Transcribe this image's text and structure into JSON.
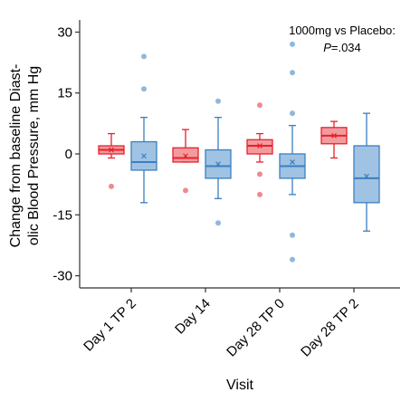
{
  "chart_data": {
    "type": "box",
    "ylabel_lines": [
      "Change from baseline Diast-",
      "olic Blood Pressure, mm Hg"
    ],
    "xlabel": "Visit",
    "ylim": [
      -33,
      33
    ],
    "yticks": [
      -30,
      -15,
      0,
      15,
      30
    ],
    "categories": [
      "Day 1 TP 2",
      "Day 14",
      "Day 28 TP 0",
      "Day 28 TP 2"
    ],
    "annotation_line1": "1000mg vs Placebo:",
    "annotation_p_italic": "P",
    "annotation_p_value": "=.034",
    "legend": "none",
    "grid": false,
    "series": [
      {
        "color_fill": "#f08a8e",
        "color_line": "#e8202a",
        "boxes": [
          {
            "q1": 0,
            "median": 1,
            "q3": 2,
            "whisker_low": -1,
            "whisker_high": 5,
            "mean": 1,
            "outliers": [
              -8
            ]
          },
          {
            "q1": -2,
            "median": -1,
            "q3": 1.5,
            "whisker_low": -2,
            "whisker_high": 6,
            "mean": -0.5,
            "outliers": [
              -9
            ]
          },
          {
            "q1": 0,
            "median": 2,
            "q3": 3.5,
            "whisker_low": -2,
            "whisker_high": 5,
            "mean": 2,
            "outliers": [
              12,
              -5,
              -10
            ]
          },
          {
            "q1": 2.5,
            "median": 4.5,
            "q3": 6.5,
            "whisker_low": -1,
            "whisker_high": 8,
            "mean": 4.5,
            "outliers": []
          }
        ]
      },
      {
        "color_fill": "#8fb8de",
        "color_line": "#3a7fc1",
        "boxes": [
          {
            "q1": -4,
            "median": -2,
            "q3": 3,
            "whisker_low": -12,
            "whisker_high": 9,
            "mean": -0.5,
            "outliers": [
              16,
              24
            ]
          },
          {
            "q1": -6,
            "median": -3,
            "q3": 1,
            "whisker_low": -11,
            "whisker_high": 9,
            "mean": -2.5,
            "outliers": [
              13,
              -17
            ]
          },
          {
            "q1": -6,
            "median": -3,
            "q3": 0,
            "whisker_low": -10,
            "whisker_high": 7,
            "mean": -2,
            "outliers": [
              10,
              20,
              27,
              -20,
              -26
            ]
          },
          {
            "q1": -12,
            "median": -6,
            "q3": 2,
            "whisker_low": -19,
            "whisker_high": 10,
            "mean": -5.5,
            "outliers": []
          }
        ]
      }
    ]
  }
}
